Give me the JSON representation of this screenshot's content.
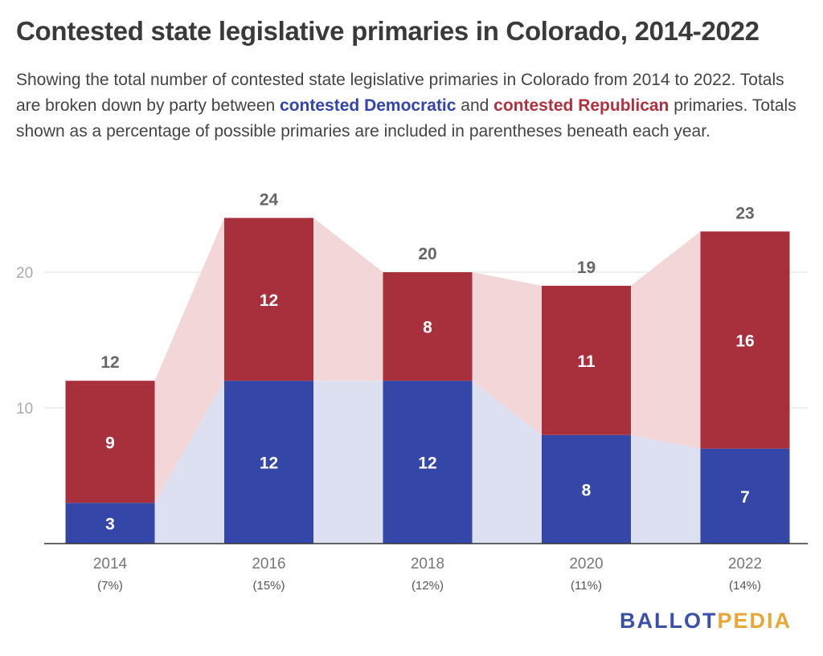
{
  "title": "Contested state legislative primaries in Colorado, 2014-2022",
  "subtitle": {
    "part1": "Showing the total number of contested state legislative primaries in Colorado from 2014 to 2022. Totals are broken down by party between ",
    "dem": "contested Democratic",
    "part2": " and ",
    "rep": "contested Republican",
    "part3": " primaries. Totals shown as a percentage of possible primaries are included in parentheses beneath each year."
  },
  "colors": {
    "democratic": "#3447a8",
    "republican": "#a8303d",
    "democratic_band": "#dde0f0",
    "republican_band": "#f3d6d8",
    "total_label": "#666666",
    "axis_label": "#777777",
    "gridline": "#e2e2e2",
    "baseline": "#333333"
  },
  "chart_data": {
    "type": "bar",
    "stacked": true,
    "categories": [
      "2014",
      "2016",
      "2018",
      "2020",
      "2022"
    ],
    "sublabels": [
      "(7%)",
      "(15%)",
      "(12%)",
      "(11%)",
      "(14%)"
    ],
    "series": [
      {
        "name": "contested Democratic",
        "values": [
          3,
          12,
          12,
          8,
          7
        ]
      },
      {
        "name": "contested Republican",
        "values": [
          9,
          12,
          8,
          11,
          16
        ]
      }
    ],
    "totals": [
      12,
      24,
      20,
      19,
      23
    ],
    "ylim": [
      0,
      25
    ],
    "yticks": [
      "10",
      "20"
    ],
    "grid": true,
    "legend": "none"
  },
  "logo": {
    "part1": "BALLOT",
    "part2": "PEDIA"
  }
}
